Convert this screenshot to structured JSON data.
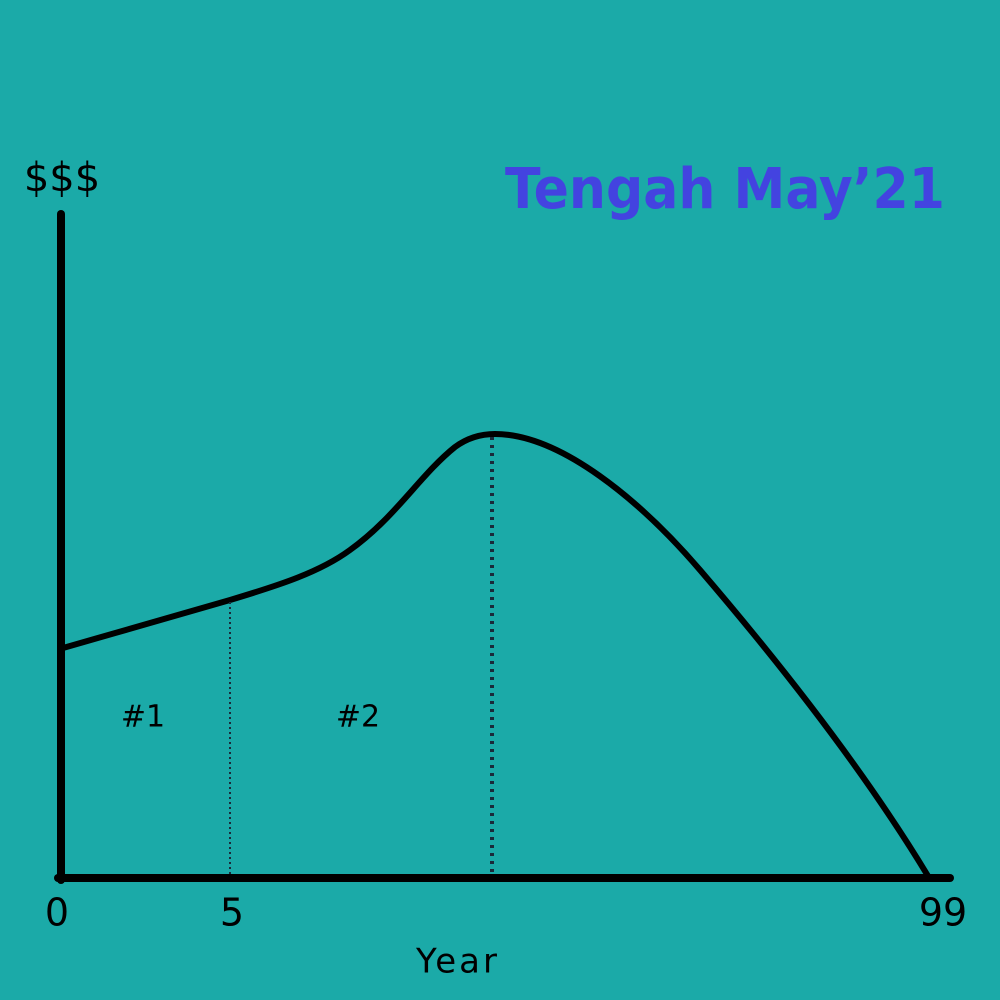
{
  "title": "Tengah May’21",
  "y_axis": {
    "label": "$$$"
  },
  "x_axis": {
    "label": "Year",
    "ticks": [
      "0",
      "5",
      "99"
    ]
  },
  "regions": [
    {
      "label": "#1"
    },
    {
      "label": "#2"
    }
  ]
}
